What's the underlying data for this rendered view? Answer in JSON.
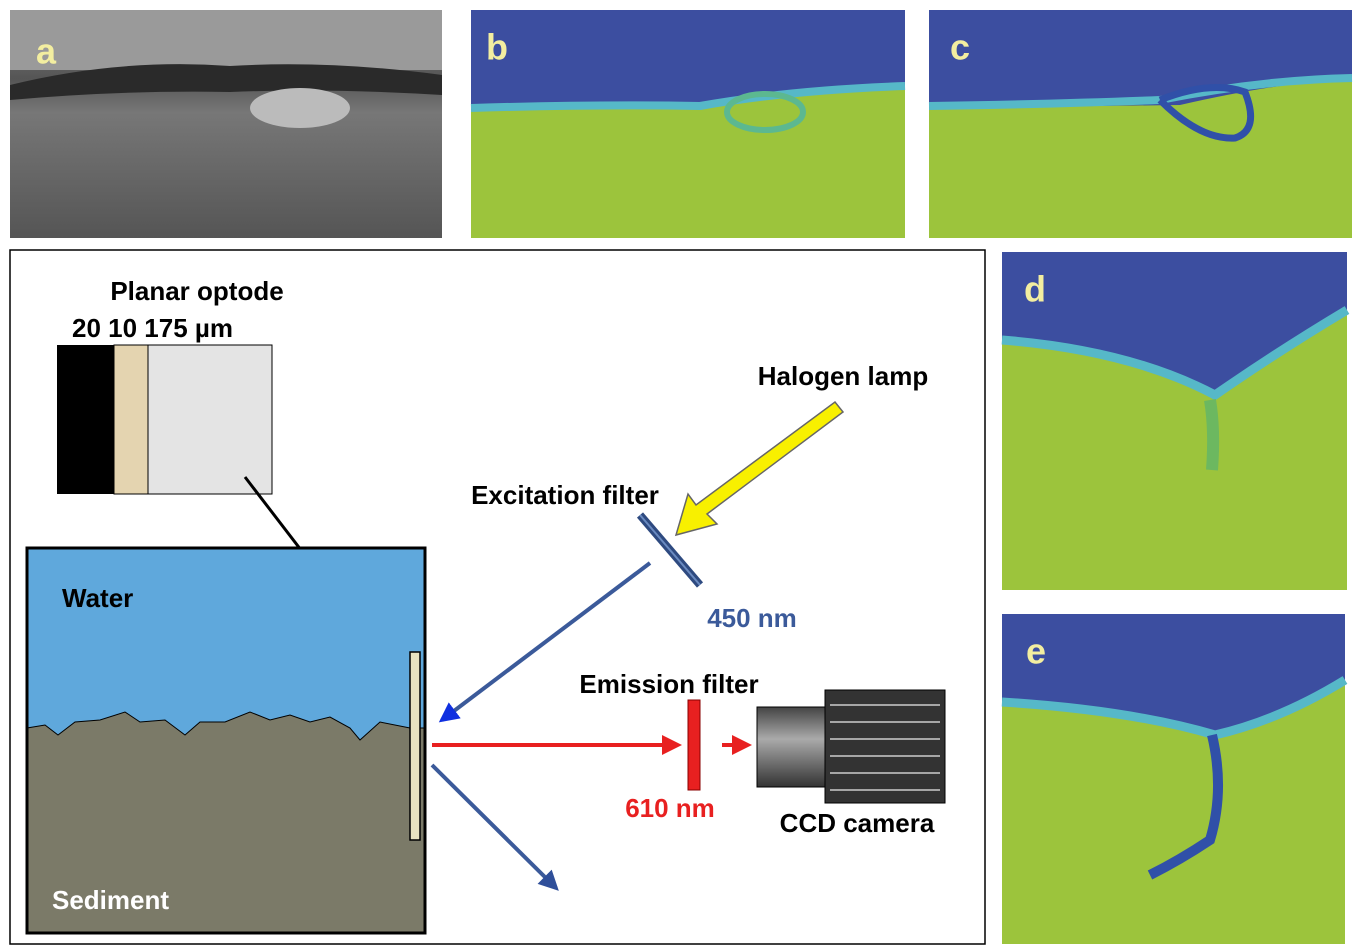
{
  "panels": [
    {
      "label": "a"
    },
    {
      "label": "b"
    },
    {
      "label": "c"
    },
    {
      "label": "d"
    },
    {
      "label": "e"
    }
  ],
  "diagram": {
    "optode_title": "Planar optode",
    "layer_thickness": "20 10  175 µm",
    "water": "Water",
    "sediment": "Sediment",
    "lamp": "Halogen lamp",
    "excitation_filter": "Excitation filter",
    "excitation_wavelength": "450 nm",
    "emission_filter": "Emission filter",
    "emission_wavelength": "610 nm",
    "camera": "CCD camera"
  }
}
